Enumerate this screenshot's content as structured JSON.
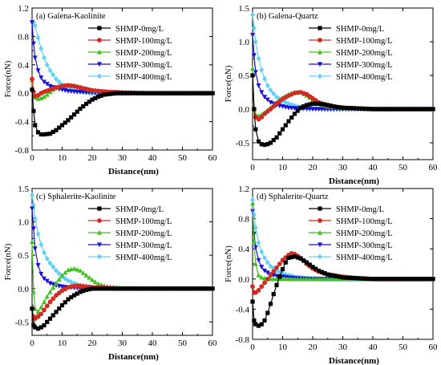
{
  "figure": {
    "xlabel": "Distance(nm)",
    "ylabel": "Force(nN)"
  },
  "series_styles": [
    {
      "name": "SHMP-0mg/L",
      "color": "#000000",
      "marker": "square"
    },
    {
      "name": "SHMP-100mg/L",
      "color": "#d02b22",
      "marker": "circle"
    },
    {
      "name": "SHMP-200mg/L",
      "color": "#3fc21e",
      "marker": "triangle-up"
    },
    {
      "name": "SHMP-300mg/L",
      "color": "#1a12d8",
      "marker": "triangle-down"
    },
    {
      "name": "SHMP-400mg/L",
      "color": "#63d0f5",
      "marker": "diamond"
    }
  ],
  "chart_data": [
    {
      "type": "line",
      "title": "(a) Galena-Kaolinite",
      "xlabel": "Distance(nm)",
      "ylabel": "Force(nN)",
      "xlim": [
        0,
        60
      ],
      "ylim": [
        -0.8,
        1.2
      ],
      "xticks": [
        0,
        10,
        20,
        30,
        40,
        50,
        60
      ],
      "yticks": [
        -0.8,
        -0.4,
        0.0,
        0.4,
        0.8,
        1.2
      ],
      "ytick_labels": [
        "-0.8",
        "-0.4",
        "0.0",
        "0.4",
        "0.8",
        "1.2"
      ],
      "legend_position": "top-right",
      "series": [
        {
          "name": "SHMP-0mg/L",
          "x": [
            0,
            0.5,
            1,
            2,
            3,
            4,
            6,
            8,
            10,
            12,
            14,
            16,
            18,
            20,
            22,
            24,
            26,
            28,
            30,
            35,
            40,
            50,
            60
          ],
          "y": [
            0.05,
            -0.25,
            -0.45,
            -0.55,
            -0.58,
            -0.58,
            -0.57,
            -0.52,
            -0.45,
            -0.38,
            -0.3,
            -0.22,
            -0.15,
            -0.09,
            -0.05,
            -0.02,
            -0.01,
            0.0,
            0.0,
            0.0,
            0.0,
            0.0,
            0.0
          ]
        },
        {
          "name": "SHMP-100mg/L",
          "x": [
            0,
            0.5,
            1,
            2,
            3,
            4,
            6,
            8,
            10,
            12,
            14,
            16,
            18,
            20,
            25,
            30,
            40,
            50,
            60
          ],
          "y": [
            0.2,
            0.02,
            -0.04,
            -0.03,
            0.0,
            0.02,
            0.05,
            0.08,
            0.1,
            0.11,
            0.1,
            0.08,
            0.06,
            0.04,
            0.02,
            0.01,
            0.0,
            0.0,
            0.0
          ]
        },
        {
          "name": "SHMP-200mg/L",
          "x": [
            0,
            0.5,
            1,
            2,
            3,
            4,
            5,
            6,
            8,
            10,
            12,
            14,
            16,
            18,
            20,
            25,
            30,
            40,
            50,
            60
          ],
          "y": [
            0.18,
            0.0,
            -0.06,
            -0.08,
            -0.07,
            -0.05,
            -0.02,
            0.02,
            0.08,
            0.11,
            0.12,
            0.11,
            0.09,
            0.06,
            0.04,
            0.02,
            0.01,
            0.0,
            0.0,
            0.0
          ]
        },
        {
          "name": "SHMP-300mg/L",
          "x": [
            0,
            0.5,
            1,
            2,
            3,
            4,
            6,
            8,
            10,
            12,
            15,
            20,
            25,
            30,
            40,
            50,
            60
          ],
          "y": [
            1.0,
            0.7,
            0.5,
            0.32,
            0.22,
            0.16,
            0.1,
            0.07,
            0.05,
            0.03,
            0.02,
            0.01,
            0.0,
            0.0,
            0.0,
            0.0,
            0.0
          ]
        },
        {
          "name": "SHMP-400mg/L",
          "x": [
            0,
            0.5,
            1,
            2,
            3,
            4,
            5,
            6,
            8,
            10,
            12,
            14,
            16,
            18,
            20,
            25,
            30,
            40,
            50,
            60
          ],
          "y": [
            1.0,
            1.0,
            0.95,
            0.78,
            0.63,
            0.5,
            0.4,
            0.32,
            0.2,
            0.12,
            0.07,
            0.04,
            0.02,
            0.01,
            0.0,
            0.0,
            0.0,
            0.0,
            0.0,
            0.0
          ]
        }
      ]
    },
    {
      "type": "line",
      "title": "(b) Galena-Quartz",
      "xlabel": "Distance(nm)",
      "ylabel": "Force(nN)",
      "xlim": [
        0,
        60
      ],
      "ylim": [
        -0.75,
        1.5
      ],
      "xticks": [
        0,
        10,
        20,
        30,
        40,
        50,
        60
      ],
      "yticks": [
        -0.5,
        0.0,
        0.5,
        1.0,
        1.5
      ],
      "ytick_labels": [
        "-0.5",
        "0.0",
        "0.5",
        "1.0",
        "1.5"
      ],
      "legend_position": "top-right",
      "series": [
        {
          "name": "SHMP-0mg/L",
          "x": [
            0,
            0.5,
            1,
            2,
            3,
            4,
            5,
            6,
            8,
            10,
            12,
            14,
            16,
            18,
            20,
            22,
            24,
            26,
            28,
            30,
            35,
            40,
            50,
            60
          ],
          "y": [
            0.5,
            0.0,
            -0.3,
            -0.48,
            -0.52,
            -0.53,
            -0.52,
            -0.5,
            -0.42,
            -0.3,
            -0.18,
            -0.07,
            0.02,
            0.06,
            0.08,
            0.08,
            0.07,
            0.05,
            0.03,
            0.02,
            0.01,
            0.0,
            0.0,
            0.0
          ]
        },
        {
          "name": "SHMP-100mg/L",
          "x": [
            0,
            0.5,
            1,
            2,
            3,
            4,
            6,
            8,
            10,
            12,
            14,
            16,
            18,
            20,
            22,
            25,
            30,
            40,
            50,
            60
          ],
          "y": [
            0.5,
            0.0,
            -0.12,
            -0.15,
            -0.12,
            -0.07,
            0.0,
            0.08,
            0.15,
            0.2,
            0.24,
            0.25,
            0.22,
            0.16,
            0.1,
            0.05,
            0.02,
            0.0,
            0.0,
            0.0
          ]
        },
        {
          "name": "SHMP-200mg/L",
          "x": [
            0,
            0.5,
            1,
            2,
            3,
            4,
            6,
            8,
            10,
            12,
            14,
            16,
            18,
            20,
            22,
            25,
            30,
            40,
            50,
            60
          ],
          "y": [
            0.6,
            0.0,
            -0.08,
            -0.1,
            -0.08,
            -0.05,
            0.02,
            0.1,
            0.17,
            0.22,
            0.25,
            0.25,
            0.2,
            0.14,
            0.08,
            0.04,
            0.02,
            0.0,
            0.0,
            0.0
          ]
        },
        {
          "name": "SHMP-300mg/L",
          "x": [
            0,
            0.5,
            1,
            2,
            3,
            4,
            6,
            8,
            10,
            12,
            15,
            20,
            25,
            30,
            40,
            50,
            60
          ],
          "y": [
            1.1,
            0.8,
            0.55,
            0.35,
            0.25,
            0.18,
            0.1,
            0.06,
            0.04,
            0.02,
            0.01,
            0.0,
            0.0,
            0.0,
            0.0,
            0.0,
            0.0
          ]
        },
        {
          "name": "SHMP-400mg/L",
          "x": [
            0,
            0.5,
            1,
            2,
            3,
            4,
            5,
            6,
            8,
            10,
            12,
            14,
            16,
            18,
            20,
            25,
            30,
            40,
            50,
            60
          ],
          "y": [
            1.4,
            1.2,
            1.0,
            0.75,
            0.58,
            0.45,
            0.35,
            0.28,
            0.18,
            0.12,
            0.08,
            0.05,
            0.03,
            0.02,
            0.01,
            0.0,
            0.0,
            0.0,
            0.0,
            0.0
          ]
        }
      ]
    },
    {
      "type": "line",
      "title": "(c) Sphalerite-Kaolinite",
      "xlabel": "Distance(nm)",
      "ylabel": "Force(nN)",
      "xlim": [
        0,
        60
      ],
      "ylim": [
        -0.7,
        1.5
      ],
      "xticks": [
        0,
        10,
        20,
        30,
        40,
        50,
        60
      ],
      "yticks": [
        -0.5,
        0.0,
        0.5,
        1.0,
        1.5
      ],
      "ytick_labels": [
        "-0.5",
        "0.0",
        "0.5",
        "1.0",
        "1.5"
      ],
      "legend_position": "top-right",
      "series": [
        {
          "name": "SHMP-0mg/L",
          "x": [
            0,
            0.5,
            1,
            2,
            3,
            4,
            5,
            6,
            8,
            10,
            12,
            14,
            16,
            18,
            20,
            22,
            25,
            30,
            40,
            50,
            60
          ],
          "y": [
            -0.3,
            -0.55,
            -0.58,
            -0.6,
            -0.58,
            -0.55,
            -0.5,
            -0.45,
            -0.35,
            -0.25,
            -0.16,
            -0.1,
            -0.05,
            -0.02,
            0.0,
            0.0,
            0.0,
            0.0,
            0.0,
            0.0,
            0.0
          ]
        },
        {
          "name": "SHMP-100mg/L",
          "x": [
            0,
            0.5,
            1,
            2,
            3,
            4,
            5,
            6,
            8,
            10,
            12,
            14,
            16,
            18,
            20,
            25,
            30,
            40,
            50,
            60
          ],
          "y": [
            -0.3,
            -0.42,
            -0.45,
            -0.42,
            -0.38,
            -0.32,
            -0.26,
            -0.2,
            -0.1,
            -0.03,
            0.02,
            0.04,
            0.04,
            0.03,
            0.02,
            0.01,
            0.0,
            0.0,
            0.0,
            0.0
          ]
        },
        {
          "name": "SHMP-200mg/L",
          "x": [
            0,
            0.5,
            1,
            2,
            3,
            4,
            5,
            6,
            8,
            10,
            12,
            14,
            16,
            18,
            20,
            22,
            25,
            30,
            40,
            50,
            60
          ],
          "y": [
            0.7,
            -0.05,
            -0.3,
            -0.35,
            -0.28,
            -0.2,
            -0.12,
            -0.05,
            0.08,
            0.2,
            0.28,
            0.3,
            0.27,
            0.2,
            0.13,
            0.07,
            0.03,
            0.01,
            0.0,
            0.0,
            0.0
          ]
        },
        {
          "name": "SHMP-300mg/L",
          "x": [
            0,
            0.5,
            1,
            2,
            3,
            4,
            6,
            8,
            10,
            12,
            15,
            20,
            25,
            30,
            40,
            50,
            60
          ],
          "y": [
            1.2,
            0.9,
            0.6,
            0.35,
            0.22,
            0.15,
            0.08,
            0.05,
            0.03,
            0.02,
            0.01,
            0.0,
            0.0,
            0.0,
            0.0,
            0.0,
            0.0
          ]
        },
        {
          "name": "SHMP-400mg/L",
          "x": [
            0,
            0.5,
            1,
            2,
            3,
            4,
            5,
            6,
            8,
            10,
            12,
            14,
            16,
            18,
            20,
            25,
            30,
            40,
            50,
            60
          ],
          "y": [
            1.4,
            1.25,
            1.05,
            0.82,
            0.66,
            0.54,
            0.45,
            0.38,
            0.27,
            0.18,
            0.12,
            0.08,
            0.05,
            0.03,
            0.02,
            0.01,
            0.0,
            0.0,
            0.0,
            0.0
          ]
        }
      ]
    },
    {
      "type": "line",
      "title": "(d) Sphalerite-Quartz",
      "xlabel": "Distance(nm)",
      "ylabel": "Force(nN)",
      "xlim": [
        0,
        60
      ],
      "ylim": [
        -0.8,
        1.2
      ],
      "xticks": [
        0,
        10,
        20,
        30,
        40,
        50,
        60
      ],
      "yticks": [
        -0.8,
        -0.4,
        0.0,
        0.4,
        0.8,
        1.2
      ],
      "ytick_labels": [
        "-0.8",
        "-0.4",
        "0.0",
        "0.4",
        "0.8",
        "1.2"
      ],
      "legend_position": "top-right",
      "series": [
        {
          "name": "SHMP-0mg/L",
          "x": [
            0,
            0.5,
            1,
            2,
            3,
            4,
            5,
            6,
            7,
            8,
            9,
            10,
            11,
            12,
            14,
            16,
            18,
            20,
            22,
            25,
            30,
            35,
            40,
            50,
            60
          ],
          "y": [
            -0.3,
            -0.55,
            -0.6,
            -0.62,
            -0.6,
            -0.55,
            -0.45,
            -0.33,
            -0.2,
            -0.08,
            0.03,
            0.13,
            0.22,
            0.28,
            0.3,
            0.27,
            0.22,
            0.16,
            0.11,
            0.06,
            0.02,
            0.01,
            0.0,
            0.0,
            0.0
          ]
        },
        {
          "name": "SHMP-100mg/L",
          "x": [
            0,
            0.5,
            1,
            2,
            3,
            4,
            5,
            6,
            8,
            10,
            12,
            13,
            14,
            16,
            18,
            20,
            22,
            25,
            30,
            35,
            40,
            50,
            60
          ],
          "y": [
            -0.1,
            -0.18,
            -0.18,
            -0.15,
            -0.1,
            -0.05,
            0.0,
            0.05,
            0.15,
            0.25,
            0.32,
            0.34,
            0.33,
            0.28,
            0.2,
            0.14,
            0.1,
            0.06,
            0.03,
            0.01,
            0.0,
            0.0,
            0.0
          ]
        },
        {
          "name": "SHMP-200mg/L",
          "x": [
            0,
            0.5,
            1,
            2,
            3,
            4,
            6,
            8,
            10,
            15,
            20,
            30,
            40,
            50,
            60
          ],
          "y": [
            1.0,
            0.5,
            0.2,
            0.05,
            0.02,
            0.01,
            0.0,
            0.0,
            0.0,
            0.0,
            0.0,
            0.0,
            0.0,
            0.0,
            0.0
          ]
        },
        {
          "name": "SHMP-300mg/L",
          "x": [
            0,
            0.5,
            1,
            2,
            3,
            4,
            6,
            8,
            10,
            12,
            15,
            20,
            25,
            30,
            40,
            50,
            60
          ],
          "y": [
            0.9,
            0.6,
            0.42,
            0.25,
            0.16,
            0.11,
            0.06,
            0.04,
            0.03,
            0.02,
            0.01,
            0.0,
            0.0,
            0.0,
            0.0,
            0.0,
            0.0
          ]
        },
        {
          "name": "SHMP-400mg/L",
          "x": [
            0,
            0.5,
            1,
            2,
            3,
            4,
            5,
            6,
            8,
            10,
            12,
            14,
            16,
            18,
            20,
            25,
            30,
            40,
            50,
            60
          ],
          "y": [
            1.05,
            0.85,
            0.68,
            0.48,
            0.36,
            0.28,
            0.22,
            0.17,
            0.11,
            0.07,
            0.05,
            0.03,
            0.02,
            0.01,
            0.01,
            0.0,
            0.0,
            0.0,
            0.0,
            0.0
          ]
        }
      ]
    }
  ]
}
